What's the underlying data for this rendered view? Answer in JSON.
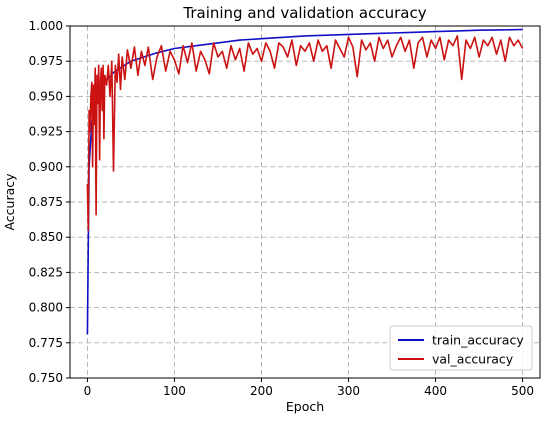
{
  "chart_data": {
    "type": "line",
    "title": "Training and validation accuracy",
    "xlabel": "Epoch",
    "ylabel": "Accuracy",
    "xlim": [
      -20,
      520
    ],
    "ylim": [
      0.75,
      1.0
    ],
    "xticks": [
      0,
      100,
      200,
      300,
      400,
      500
    ],
    "yticks": [
      0.75,
      0.775,
      0.8,
      0.825,
      0.85,
      0.875,
      0.9,
      0.925,
      0.95,
      0.975,
      1.0
    ],
    "grid": true,
    "legend_position": "lower-right",
    "series": [
      {
        "name": "train_accuracy",
        "color": "#1010c8",
        "x": [
          0,
          2,
          5,
          10,
          15,
          20,
          30,
          40,
          50,
          60,
          80,
          100,
          125,
          150,
          175,
          200,
          225,
          250,
          275,
          300,
          325,
          350,
          375,
          400,
          425,
          450,
          475,
          500
        ],
        "values": [
          0.781,
          0.9,
          0.932,
          0.948,
          0.955,
          0.96,
          0.967,
          0.971,
          0.975,
          0.977,
          0.981,
          0.984,
          0.986,
          0.988,
          0.99,
          0.991,
          0.992,
          0.993,
          0.9935,
          0.994,
          0.9945,
          0.995,
          0.9955,
          0.996,
          0.9965,
          0.997,
          0.9972,
          0.9975
        ]
      },
      {
        "name": "val_accuracy",
        "color": "#cc1111",
        "x": [
          0,
          1,
          2,
          3,
          4,
          5,
          6,
          7,
          8,
          9,
          10,
          11,
          12,
          13,
          14,
          15,
          16,
          17,
          18,
          19,
          20,
          22,
          24,
          26,
          28,
          30,
          32,
          34,
          36,
          38,
          40,
          43,
          46,
          50,
          54,
          58,
          62,
          66,
          70,
          75,
          80,
          85,
          90,
          95,
          100,
          105,
          110,
          115,
          120,
          125,
          130,
          135,
          140,
          145,
          150,
          155,
          160,
          165,
          170,
          175,
          180,
          185,
          190,
          195,
          200,
          205,
          210,
          215,
          220,
          225,
          230,
          235,
          240,
          245,
          250,
          255,
          260,
          265,
          270,
          275,
          280,
          285,
          290,
          295,
          300,
          305,
          310,
          315,
          320,
          325,
          330,
          335,
          340,
          345,
          350,
          355,
          360,
          365,
          370,
          375,
          380,
          385,
          390,
          395,
          400,
          405,
          410,
          415,
          420,
          425,
          430,
          435,
          440,
          445,
          450,
          455,
          460,
          465,
          470,
          475,
          480,
          485,
          490,
          495,
          500
        ],
        "values": [
          0.888,
          0.855,
          0.94,
          0.925,
          0.95,
          0.96,
          0.9,
          0.958,
          0.93,
          0.97,
          0.866,
          0.965,
          0.945,
          0.972,
          0.905,
          0.96,
          0.97,
          0.94,
          0.972,
          0.92,
          0.965,
          0.958,
          0.972,
          0.95,
          0.975,
          0.897,
          0.972,
          0.96,
          0.98,
          0.955,
          0.978,
          0.962,
          0.983,
          0.97,
          0.985,
          0.965,
          0.982,
          0.972,
          0.985,
          0.962,
          0.978,
          0.986,
          0.968,
          0.982,
          0.976,
          0.966,
          0.986,
          0.974,
          0.988,
          0.968,
          0.982,
          0.976,
          0.966,
          0.988,
          0.978,
          0.982,
          0.97,
          0.986,
          0.976,
          0.984,
          0.968,
          0.988,
          0.98,
          0.984,
          0.975,
          0.988,
          0.982,
          0.97,
          0.988,
          0.985,
          0.978,
          0.99,
          0.972,
          0.986,
          0.982,
          0.988,
          0.975,
          0.99,
          0.982,
          0.986,
          0.97,
          0.99,
          0.984,
          0.978,
          0.992,
          0.985,
          0.964,
          0.99,
          0.983,
          0.988,
          0.975,
          0.992,
          0.984,
          0.99,
          0.978,
          0.986,
          0.992,
          0.982,
          0.99,
          0.97,
          0.988,
          0.992,
          0.978,
          0.99,
          0.984,
          0.992,
          0.976,
          0.99,
          0.986,
          0.993,
          0.962,
          0.99,
          0.984,
          0.992,
          0.978,
          0.99,
          0.986,
          0.992,
          0.98,
          0.99,
          0.975,
          0.992,
          0.986,
          0.99,
          0.984
        ]
      }
    ]
  }
}
